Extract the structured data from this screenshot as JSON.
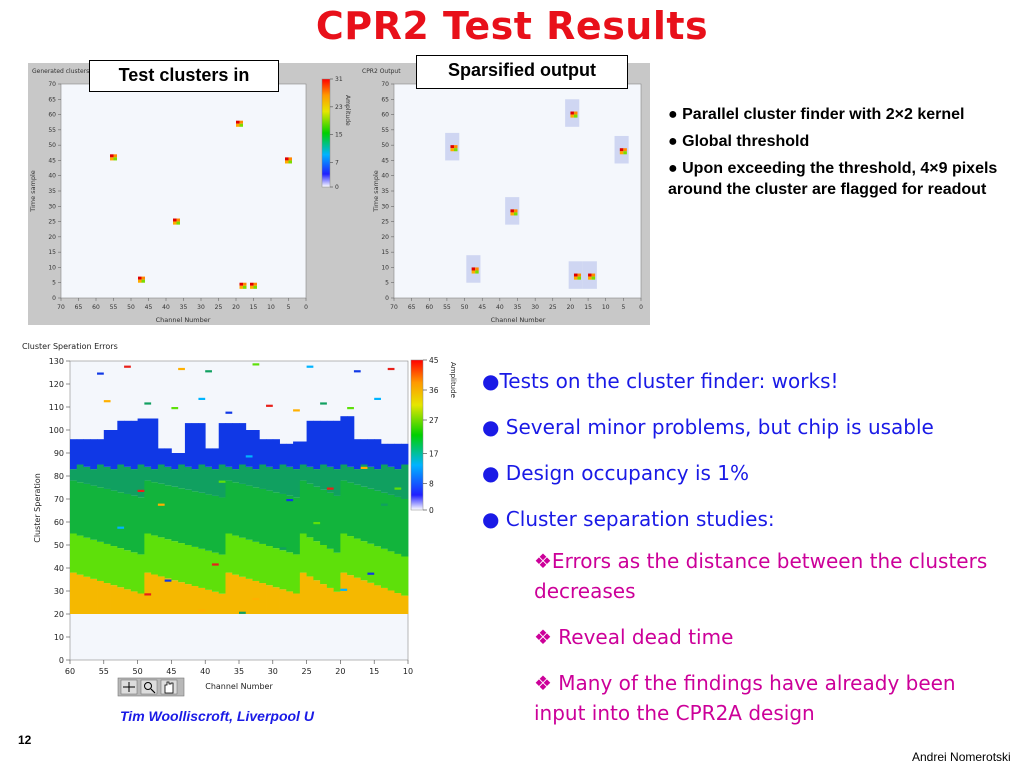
{
  "slide": {
    "title": "CPR2 Test Results",
    "page_number": "12",
    "author": "Andrei Nomerotski",
    "credit": "Tim Woolliscroft, Liverpool U"
  },
  "callouts": {
    "left": "Test clusters in",
    "right": "Sparsified output"
  },
  "top_bullets": [
    {
      "marker": "●",
      "text": "Parallel cluster finder with 2×2 kernel"
    },
    {
      "marker": "●",
      "text": "Global threshold"
    },
    {
      "marker": "●",
      "text": "Upon exceeding the threshold, 4×9 pixels around the cluster are flagged for readout"
    }
  ],
  "blue_bullets": [
    "●Tests on the cluster finder: works!",
    "● Several minor problems, but chip is usable",
    "● Design occupancy is 1%",
    "● Cluster separation studies:"
  ],
  "sub_bullets": [
    "❖Errors as the distance between the clusters decreases",
    "❖ Reveal dead time",
    "❖ Many of the findings have already been input into the CPR2A design"
  ],
  "colors": {
    "title": "#e8101a",
    "blue_text": "#1a1ae6",
    "magenta_text": "#cc0099",
    "plot_bg": "#f4f7fc",
    "panel_bg": "#c8c8c8"
  },
  "toolbar_icons": [
    "crosshair-icon",
    "zoom-icon",
    "hand-icon"
  ],
  "chart_data": [
    {
      "type": "heatmap",
      "title": "Generated clusters",
      "xlabel": "Channel Number",
      "ylabel": "Time sample",
      "x_range": [
        70,
        0
      ],
      "y_range": [
        0,
        70
      ],
      "x_ticks": [
        "70",
        "65",
        "60",
        "55",
        "50",
        "45",
        "40",
        "35",
        "30",
        "25",
        "20",
        "15",
        "10",
        "5",
        "0"
      ],
      "y_ticks": [
        "0",
        "5",
        "10",
        "15",
        "20",
        "25",
        "30",
        "35",
        "40",
        "45",
        "50",
        "55",
        "60",
        "65",
        "70"
      ],
      "colorbar_label": "Amplitude",
      "colorbar_ticks": [
        "0",
        "7",
        "15",
        "23",
        "31"
      ],
      "clusters": [
        {
          "x": 55,
          "y": 46
        },
        {
          "x": 19,
          "y": 57
        },
        {
          "x": 5,
          "y": 45
        },
        {
          "x": 37,
          "y": 25
        },
        {
          "x": 47,
          "y": 6
        },
        {
          "x": 18,
          "y": 4
        },
        {
          "x": 15,
          "y": 4
        }
      ]
    },
    {
      "type": "heatmap",
      "title": "CPR2 Output",
      "xlabel": "Channel Number",
      "ylabel": "Time sample",
      "x_range": [
        70,
        0
      ],
      "y_range": [
        0,
        70
      ],
      "x_ticks": [
        "70",
        "65",
        "60",
        "55",
        "50",
        "45",
        "40",
        "35",
        "30",
        "25",
        "20",
        "15",
        "10",
        "5",
        "0"
      ],
      "y_ticks": [
        "0",
        "5",
        "10",
        "15",
        "20",
        "25",
        "30",
        "35",
        "40",
        "45",
        "50",
        "55",
        "60",
        "65",
        "70"
      ],
      "clusters": [
        {
          "x": 53,
          "y": 49
        },
        {
          "x": 19,
          "y": 60
        },
        {
          "x": 5,
          "y": 48
        },
        {
          "x": 36,
          "y": 28
        },
        {
          "x": 47,
          "y": 9
        },
        {
          "x": 18,
          "y": 7
        },
        {
          "x": 14,
          "y": 7
        }
      ]
    },
    {
      "type": "heatmap",
      "title": "Cluster Speration Errors",
      "xlabel": "Channel Number",
      "ylabel": "Cluster Speration",
      "x_range": [
        60,
        10
      ],
      "y_range": [
        0,
        130
      ],
      "x_ticks": [
        "60",
        "55",
        "50",
        "45",
        "40",
        "35",
        "30",
        "25",
        "20",
        "15",
        "10"
      ],
      "y_ticks": [
        "0",
        "10",
        "20",
        "30",
        "40",
        "50",
        "60",
        "70",
        "80",
        "90",
        "100",
        "110",
        "120",
        "130"
      ],
      "colorbar_label": "Amplitude",
      "colorbar_ticks": [
        "0",
        "8",
        "17",
        "27",
        "36",
        "45"
      ],
      "bands": [
        {
          "name": "orange",
          "color": "#f5b800",
          "from": 20
        },
        {
          "name": "light green",
          "color": "#5ee00a",
          "from": 30
        },
        {
          "name": "green",
          "color": "#12b43c",
          "from": 50
        },
        {
          "name": "dark green",
          "color": "#10a060",
          "from": 65
        },
        {
          "name": "blue",
          "color": "#1038e6",
          "from": 83
        }
      ]
    }
  ]
}
